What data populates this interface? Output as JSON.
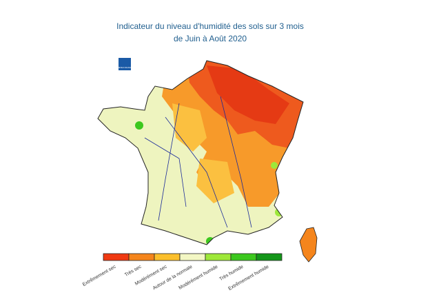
{
  "header": {
    "title_lines": [
      "Indicateur du niveau d'humidité des sols sur 3 mois",
      "de Juin à Août 2020"
    ]
  },
  "logo": {
    "text": "METEO FRANCE",
    "color": "#1a5aa6"
  },
  "legend": {
    "items": [
      {
        "label": "Extrêmement sec",
        "color": "#f03a12"
      },
      {
        "label": "Très sec",
        "color": "#f5851c"
      },
      {
        "label": "Modérément sec",
        "color": "#fbbf2c"
      },
      {
        "label": "Autour de la normale",
        "color": "#f3f7c4"
      },
      {
        "label": "Modérément humide",
        "color": "#9ee83a"
      },
      {
        "label": "Très humide",
        "color": "#3cc81e"
      },
      {
        "label": "Extrêmement humide",
        "color": "#14961a"
      }
    ]
  }
}
